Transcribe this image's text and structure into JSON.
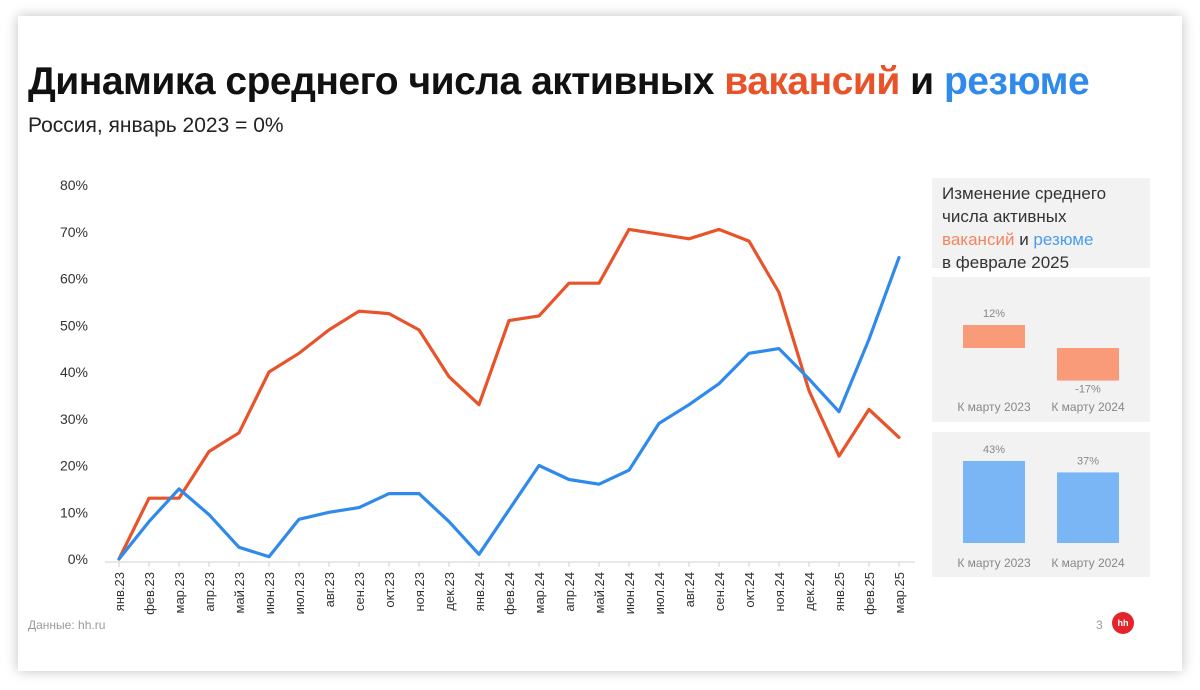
{
  "title": {
    "main": "Динамика среднего числа активных",
    "vacancies": "вакансий",
    "and": "и",
    "resumes": "резюме"
  },
  "subtitle": "Россия, январь 2023 = 0%",
  "source": "Данные: hh.ru",
  "page_number": "3",
  "logo_text": "hh",
  "side": {
    "title_line1": "Изменение среднего",
    "title_line2": "числа активных",
    "title_vacancies": "вакансий",
    "title_and": "и",
    "title_resumes": "резюме",
    "title_line4": "в феврале 2025"
  },
  "colors": {
    "vacancies": "#e8532a",
    "resumes": "#2f8aeb",
    "vacancies_light": "#f99a78",
    "resumes_light": "#7ab6f6",
    "grid_text": "#333333"
  },
  "chart_data": [
    {
      "type": "line",
      "categories": [
        "янв.23",
        "фев.23",
        "мар.23",
        "апр.23",
        "май.23",
        "июн.23",
        "июл.23",
        "авг.23",
        "сен.23",
        "окт.23",
        "ноя.23",
        "дек.23",
        "янв.24",
        "фев.24",
        "мар.24",
        "апр.24",
        "май.24",
        "июн.24",
        "июл.24",
        "авг.24",
        "сен.24",
        "окт.24",
        "ноя.24",
        "дек.24",
        "янв.25",
        "фев.25",
        "мар.25"
      ],
      "series": [
        {
          "name": "вакансий",
          "color": "#e8532a",
          "values": [
            0,
            13,
            13,
            23,
            27,
            40,
            44,
            49,
            53,
            52.5,
            49,
            39,
            33,
            51,
            52,
            59,
            59,
            70.5,
            69.5,
            68.5,
            70.5,
            68,
            57,
            36,
            22,
            32,
            26
          ]
        },
        {
          "name": "резюме",
          "color": "#2f8aeb",
          "values": [
            0,
            8,
            15,
            9.5,
            2.5,
            0.5,
            8.5,
            10,
            11,
            14,
            14,
            8,
            1,
            10.5,
            20,
            17,
            16,
            19,
            29,
            33,
            37.5,
            44,
            45,
            38.5,
            31.5,
            47,
            64.5
          ]
        }
      ],
      "yticks": [
        "0%",
        "10%",
        "20%",
        "30%",
        "40%",
        "50%",
        "60%",
        "70%",
        "80%"
      ],
      "ylim": [
        0,
        80
      ],
      "grid": false
    },
    {
      "type": "bar",
      "series_name": "вакансий",
      "categories": [
        "К марту 2023",
        "К марту 2024"
      ],
      "values": [
        12,
        -17
      ],
      "labels": [
        "12%",
        "-17%"
      ]
    },
    {
      "type": "bar",
      "series_name": "резюме",
      "categories": [
        "К марту 2023",
        "К марту 2024"
      ],
      "values": [
        43,
        37
      ],
      "labels": [
        "43%",
        "37%"
      ]
    }
  ]
}
